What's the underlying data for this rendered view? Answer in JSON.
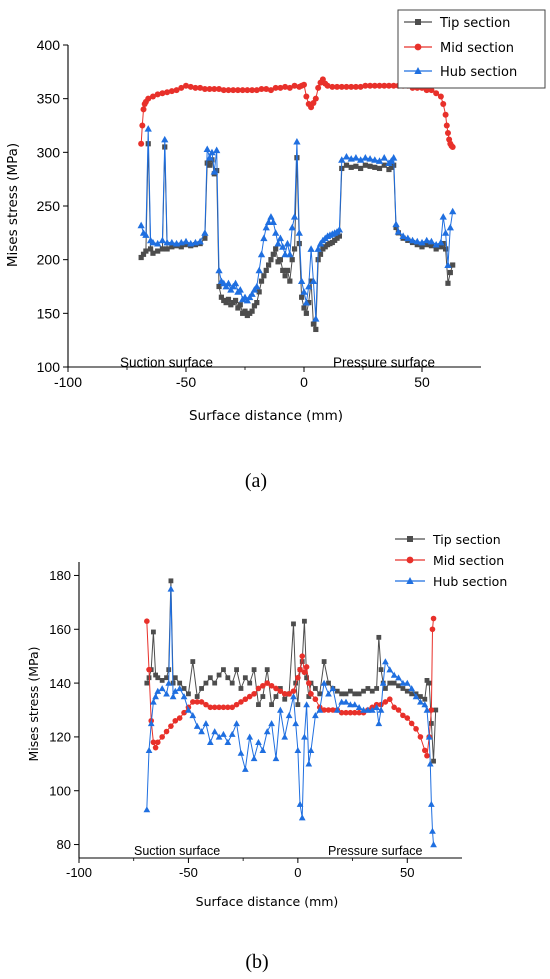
{
  "chart_data": [
    {
      "type": "line",
      "panel_label": "(a)",
      "xlabel": "Surface distance (mm)",
      "ylabel": "Mises stress (MPa)",
      "xlim": [
        -100,
        75
      ],
      "ylim": [
        100,
        400
      ],
      "xticks": [
        "-100",
        "-50",
        "0",
        "50"
      ],
      "yticks": [
        "100",
        "150",
        "200",
        "250",
        "300",
        "350",
        "400"
      ],
      "legend_position": "top-right",
      "annotations": [
        "Suction surface",
        "Pressure surface"
      ],
      "grid": false,
      "series": [
        {
          "name": "Tip section",
          "color": "#4d4d4d",
          "marker": "square",
          "x": [
            -69,
            -68,
            -67,
            -66,
            -65,
            -64,
            -62,
            -60,
            -59,
            -58,
            -56,
            -54,
            -52,
            -50,
            -48,
            -46,
            -44,
            -42,
            -41,
            -40,
            -39,
            -38,
            -37,
            -36,
            -35,
            -34,
            -33,
            -32,
            -31,
            -30,
            -29,
            -28,
            -27,
            -26,
            -25,
            -24,
            -23,
            -22,
            -21,
            -20,
            -19,
            -18,
            -17,
            -16,
            -15,
            -14,
            -13,
            -12,
            -11,
            -10,
            -9,
            -8,
            -7,
            -6,
            -5,
            -4,
            -3,
            -2,
            -1,
            0,
            1,
            2,
            3,
            4,
            5,
            6,
            7,
            8,
            9,
            10,
            11,
            12,
            13,
            14,
            15,
            16,
            18,
            20,
            22,
            24,
            26,
            28,
            30,
            32,
            34,
            36,
            37,
            38,
            39,
            40,
            42,
            44,
            46,
            48,
            50,
            52,
            54,
            56,
            58,
            59,
            60,
            61,
            62,
            63
          ],
          "y": [
            202,
            205,
            208,
            308,
            210,
            206,
            208,
            210,
            305,
            210,
            212,
            213,
            212,
            214,
            213,
            214,
            215,
            220,
            290,
            288,
            293,
            280,
            283,
            175,
            165,
            162,
            160,
            163,
            158,
            160,
            162,
            155,
            158,
            150,
            152,
            148,
            150,
            152,
            157,
            160,
            170,
            180,
            185,
            190,
            195,
            200,
            205,
            210,
            198,
            200,
            190,
            185,
            190,
            180,
            200,
            210,
            295,
            215,
            165,
            155,
            150,
            160,
            180,
            140,
            135,
            200,
            205,
            210,
            212,
            214,
            215,
            216,
            218,
            220,
            222,
            285,
            288,
            286,
            287,
            285,
            288,
            287,
            286,
            285,
            288,
            284,
            286,
            288,
            230,
            225,
            220,
            218,
            216,
            214,
            212,
            214,
            213,
            210,
            212,
            215,
            210,
            178,
            188,
            195
          ]
        },
        {
          "name": "Mid section",
          "color": "#e8302a",
          "marker": "circle",
          "x": [
            -69,
            -68.5,
            -68,
            -67.5,
            -67,
            -66,
            -64,
            -62,
            -60,
            -58,
            -56,
            -54,
            -52,
            -50,
            -48,
            -46,
            -44,
            -42,
            -40,
            -38,
            -36,
            -34,
            -32,
            -30,
            -28,
            -26,
            -24,
            -22,
            -20,
            -18,
            -16,
            -14,
            -12,
            -10,
            -8,
            -6,
            -4,
            -2,
            -1,
            0,
            1,
            2,
            3,
            4,
            5,
            6,
            7,
            8,
            9,
            10,
            12,
            14,
            16,
            18,
            20,
            22,
            24,
            26,
            28,
            30,
            32,
            34,
            36,
            38,
            40,
            42,
            44,
            46,
            48,
            50,
            52,
            54,
            56,
            58,
            59,
            60,
            60.5,
            61,
            61.5,
            62,
            62.5,
            63
          ],
          "y": [
            308,
            325,
            340,
            345,
            347,
            350,
            352,
            354,
            355,
            356,
            357,
            358,
            360,
            362,
            361,
            360,
            360,
            359,
            359,
            359,
            359,
            358,
            358,
            358,
            358,
            358,
            358,
            358,
            358,
            359,
            359,
            358,
            360,
            360,
            361,
            360,
            362,
            361,
            362,
            363,
            352,
            345,
            342,
            346,
            350,
            360,
            365,
            368,
            364,
            362,
            361,
            361,
            361,
            361,
            361,
            361,
            361,
            362,
            362,
            362,
            362,
            362,
            362,
            362,
            362,
            362,
            362,
            360,
            360,
            360,
            358,
            358,
            355,
            352,
            345,
            335,
            325,
            318,
            312,
            308,
            306,
            305
          ]
        },
        {
          "name": "Hub section",
          "color": "#1f6fe0",
          "marker": "triangle",
          "x": [
            -69,
            -68,
            -67,
            -66,
            -65,
            -64,
            -62,
            -60,
            -59,
            -58,
            -56,
            -54,
            -52,
            -50,
            -48,
            -46,
            -44,
            -42,
            -41,
            -40,
            -39,
            -38,
            -37,
            -36,
            -35,
            -34,
            -33,
            -32,
            -31,
            -30,
            -29,
            -28,
            -27,
            -26,
            -25,
            -24,
            -23,
            -22,
            -21,
            -20,
            -19,
            -18,
            -17,
            -16,
            -15,
            -14,
            -13,
            -12,
            -11,
            -10,
            -9,
            -8,
            -7,
            -6,
            -5,
            -4,
            -3,
            -2,
            -1,
            0,
            1,
            2,
            3,
            4,
            5,
            6,
            7,
            8,
            9,
            10,
            11,
            12,
            13,
            14,
            15,
            16,
            18,
            20,
            22,
            24,
            26,
            28,
            30,
            32,
            34,
            36,
            37,
            38,
            39,
            40,
            42,
            44,
            46,
            48,
            50,
            52,
            54,
            56,
            58,
            59,
            60,
            61,
            62,
            63
          ],
          "y": [
            232,
            225,
            223,
            322,
            218,
            216,
            215,
            218,
            312,
            216,
            216,
            215,
            216,
            217,
            215,
            216,
            217,
            225,
            303,
            295,
            300,
            282,
            302,
            190,
            180,
            178,
            175,
            178,
            172,
            175,
            178,
            170,
            172,
            163,
            165,
            162,
            165,
            168,
            172,
            175,
            190,
            205,
            220,
            230,
            235,
            240,
            235,
            225,
            215,
            220,
            212,
            205,
            215,
            205,
            230,
            240,
            310,
            225,
            180,
            170,
            160,
            175,
            210,
            180,
            145,
            210,
            215,
            218,
            220,
            222,
            223,
            224,
            225,
            226,
            228,
            293,
            296,
            294,
            295,
            293,
            295,
            294,
            293,
            292,
            295,
            290,
            292,
            295,
            233,
            226,
            222,
            220,
            218,
            217,
            216,
            218,
            217,
            214,
            216,
            240,
            225,
            195,
            230,
            245
          ]
        }
      ]
    },
    {
      "type": "line",
      "panel_label": "(b)",
      "xlabel": "Surface distance (mm)",
      "ylabel": "Mises stress (MPa)",
      "xlim": [
        -100,
        75
      ],
      "ylim": [
        75,
        185
      ],
      "xticks": [
        "-100",
        "-50",
        "0",
        "50"
      ],
      "yticks": [
        "80",
        "100",
        "120",
        "140",
        "160",
        "180"
      ],
      "legend_position": "top-right",
      "annotations": [
        "Suction surface",
        "Pressure surface"
      ],
      "grid": false,
      "series": [
        {
          "name": "Tip section",
          "color": "#4d4d4d",
          "marker": "square",
          "x": [
            -69,
            -68,
            -67,
            -66,
            -65,
            -64,
            -62,
            -60,
            -59,
            -58,
            -57,
            -56,
            -54,
            -52,
            -50,
            -48,
            -46,
            -44,
            -42,
            -40,
            -38,
            -36,
            -34,
            -32,
            -30,
            -28,
            -26,
            -24,
            -22,
            -20,
            -18,
            -16,
            -14,
            -12,
            -10,
            -8,
            -6,
            -4,
            -2,
            -1,
            0,
            1,
            2,
            3,
            4,
            5,
            6,
            8,
            10,
            12,
            14,
            16,
            18,
            20,
            22,
            24,
            26,
            28,
            30,
            32,
            34,
            36,
            37,
            38,
            39,
            40,
            42,
            44,
            46,
            48,
            50,
            52,
            54,
            56,
            58,
            59,
            60,
            61,
            62,
            63
          ],
          "y": [
            140,
            142,
            145,
            159,
            143,
            142,
            141,
            142,
            145,
            178,
            140,
            142,
            140,
            138,
            136,
            148,
            135,
            138,
            140,
            142,
            140,
            143,
            145,
            142,
            140,
            145,
            138,
            142,
            140,
            145,
            132,
            135,
            145,
            132,
            135,
            138,
            134,
            136,
            162,
            140,
            132,
            145,
            148,
            163,
            142,
            135,
            140,
            138,
            136,
            148,
            140,
            138,
            137,
            136,
            136,
            137,
            136,
            136,
            137,
            138,
            137,
            138,
            157,
            145,
            140,
            138,
            140,
            140,
            139,
            138,
            137,
            136,
            136,
            135,
            134,
            141,
            140,
            125,
            111,
            130
          ]
        },
        {
          "name": "Mid section",
          "color": "#e8302a",
          "marker": "circle",
          "x": [
            -69,
            -68,
            -67,
            -66,
            -65,
            -64,
            -62,
            -60,
            -58,
            -56,
            -54,
            -52,
            -50,
            -48,
            -46,
            -44,
            -42,
            -40,
            -38,
            -36,
            -34,
            -32,
            -30,
            -28,
            -26,
            -24,
            -22,
            -20,
            -18,
            -16,
            -14,
            -12,
            -10,
            -8,
            -6,
            -4,
            -2,
            0,
            1,
            2,
            3,
            4,
            5,
            6,
            8,
            10,
            12,
            14,
            16,
            18,
            20,
            22,
            24,
            26,
            28,
            30,
            32,
            34,
            36,
            38,
            40,
            42,
            44,
            46,
            48,
            50,
            52,
            54,
            56,
            58,
            59,
            60,
            61,
            61.5,
            62
          ],
          "y": [
            163,
            145,
            126,
            118,
            116,
            118,
            120,
            122,
            124,
            126,
            127,
            129,
            131,
            133,
            133,
            133,
            132,
            131,
            131,
            131,
            131,
            131,
            131,
            132,
            133,
            134,
            135,
            136,
            138,
            139,
            140,
            139,
            138,
            137,
            136,
            136,
            137,
            142,
            145,
            150,
            144,
            146,
            140,
            136,
            134,
            131,
            130,
            130,
            130,
            130,
            129,
            129,
            129,
            129,
            129,
            129,
            130,
            131,
            132,
            132,
            133,
            134,
            131,
            130,
            128,
            127,
            125,
            123,
            120,
            115,
            113,
            120,
            130,
            160,
            164
          ]
        },
        {
          "name": "Hub section",
          "color": "#1f6fe0",
          "marker": "triangle",
          "x": [
            -69,
            -68,
            -67,
            -66,
            -65,
            -64,
            -62,
            -60,
            -59,
            -58,
            -57,
            -56,
            -54,
            -52,
            -50,
            -48,
            -46,
            -44,
            -42,
            -40,
            -38,
            -36,
            -34,
            -32,
            -30,
            -28,
            -26,
            -24,
            -22,
            -20,
            -18,
            -16,
            -14,
            -12,
            -10,
            -8,
            -6,
            -4,
            -2,
            -1,
            0,
            1,
            2,
            3,
            4,
            5,
            6,
            8,
            10,
            12,
            14,
            16,
            18,
            20,
            22,
            24,
            26,
            28,
            30,
            32,
            34,
            36,
            37,
            38,
            39,
            40,
            42,
            44,
            46,
            48,
            50,
            52,
            54,
            56,
            58,
            59,
            60,
            60.5,
            61,
            61.5,
            62
          ],
          "y": [
            93,
            115,
            125,
            133,
            135,
            137,
            138,
            136,
            140,
            175,
            135,
            137,
            138,
            135,
            130,
            128,
            124,
            122,
            125,
            118,
            122,
            120,
            121,
            118,
            121,
            125,
            114,
            108,
            120,
            112,
            118,
            115,
            122,
            125,
            112,
            130,
            120,
            128,
            135,
            125,
            115,
            95,
            90,
            120,
            132,
            110,
            115,
            128,
            130,
            140,
            136,
            138,
            130,
            133,
            133,
            132,
            132,
            131,
            130,
            130,
            130,
            131,
            125,
            130,
            140,
            148,
            145,
            143,
            142,
            140,
            140,
            138,
            135,
            133,
            132,
            130,
            120,
            110,
            95,
            85,
            80
          ]
        }
      ]
    }
  ]
}
